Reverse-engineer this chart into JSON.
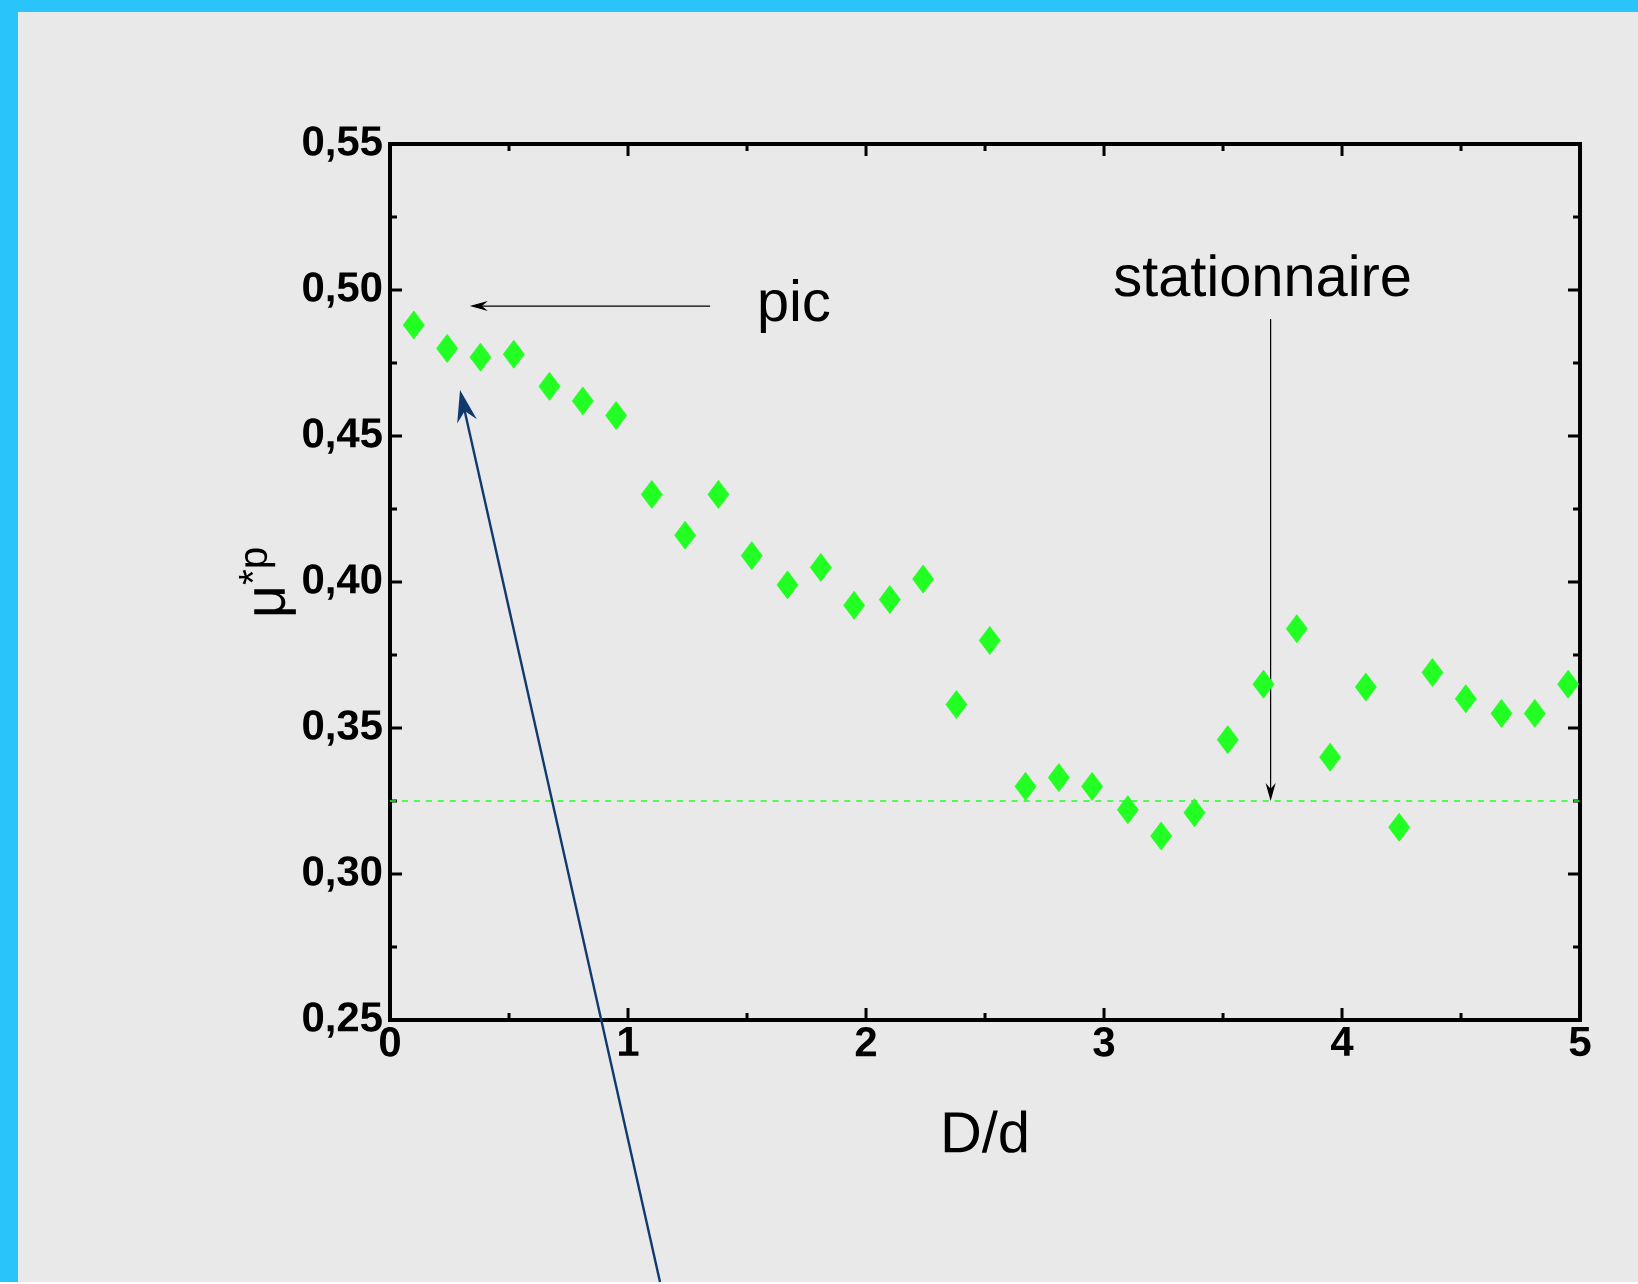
{
  "chart_data": {
    "type": "scatter",
    "xlabel": "D/d",
    "ylabel": "μ$^{*p}$",
    "x": [
      0.1,
      0.24,
      0.38,
      0.52,
      0.67,
      0.81,
      0.95,
      1.1,
      1.24,
      1.38,
      1.52,
      1.67,
      1.81,
      1.95,
      2.1,
      2.24,
      2.38,
      2.52,
      2.67,
      2.81,
      2.95,
      3.1,
      3.24,
      3.38,
      3.52,
      3.67,
      3.81,
      3.95,
      4.1,
      4.24,
      4.38,
      4.52,
      4.67,
      4.81,
      4.95
    ],
    "series": [
      {
        "color": "#22ff22",
        "values": [
          0.488,
          0.48,
          0.477,
          0.478,
          0.467,
          0.462,
          0.457,
          0.43,
          0.416,
          0.43,
          0.409,
          0.399,
          0.405,
          0.392,
          0.394,
          0.401,
          0.358,
          0.38,
          0.33,
          0.333,
          0.33,
          0.322,
          0.313,
          0.321,
          0.346,
          0.365,
          0.384,
          0.34,
          0.364,
          0.316,
          0.369,
          0.36,
          0.355,
          0.355,
          0.365
        ]
      }
    ],
    "marker": "diamond",
    "grid": false,
    "xlim": [
      0,
      5
    ],
    "ylim": [
      0.25,
      0.55
    ],
    "xticks": [
      0,
      1,
      2,
      3,
      4,
      5
    ],
    "yticks": [
      {
        "value": 0.25,
        "label": "0,25"
      },
      {
        "value": 0.3,
        "label": "0,30"
      },
      {
        "value": 0.35,
        "label": "0,35"
      },
      {
        "value": 0.4,
        "label": "0,40"
      },
      {
        "value": 0.45,
        "label": "0,45"
      },
      {
        "value": 0.5,
        "label": "0,50"
      },
      {
        "value": 0.55,
        "label": "0,55"
      }
    ],
    "ref_lines": [
      {
        "axis": "y",
        "value": 0.325,
        "color": "#22ff22",
        "line_style": "dashed"
      }
    ],
    "annotations": [
      "pic",
      {
        "text": "stationnaire",
        "x": 3.7,
        "y": 0.325
      }
    ]
  }
}
